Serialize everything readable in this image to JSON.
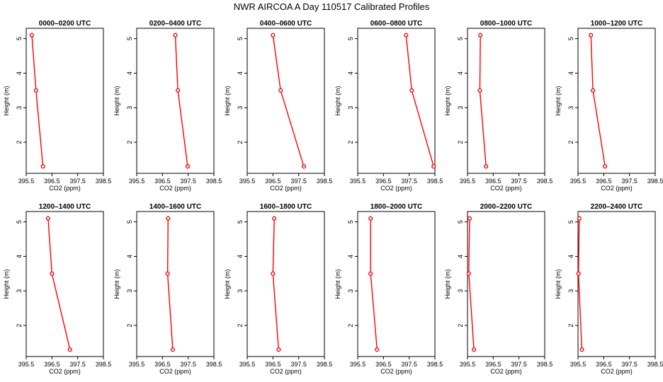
{
  "figure": {
    "title": "NWR AIRCOA A  Day 110517  Calibrated Profiles"
  },
  "style": {
    "series_color": "#ff0000",
    "axis_color": "#000000"
  },
  "chart_data": [
    {
      "type": "line",
      "title": "0000–0200 UTC",
      "xlabel": "CO2 (ppm)",
      "ylabel": "Height (m)",
      "xlim": [
        395.5,
        398.5
      ],
      "ylim": [
        1.1,
        5.3
      ],
      "x_ticks": [
        "395.5",
        "396.5",
        "397.5",
        "398.5"
      ],
      "y_ticks": [
        "2",
        "3",
        "4",
        "5"
      ],
      "series": [
        {
          "x": [
            395.72,
            395.88,
            396.15
          ],
          "y": [
            5.1,
            3.5,
            1.3
          ]
        }
      ]
    },
    {
      "type": "line",
      "title": "0200–0400 UTC",
      "xlabel": "CO2 (ppm)",
      "ylabel": "Height (m)",
      "xlim": [
        395.5,
        398.5
      ],
      "ylim": [
        1.1,
        5.3
      ],
      "x_ticks": [
        "395.5",
        "396.5",
        "397.5",
        "398.5"
      ],
      "y_ticks": [
        "2",
        "3",
        "4",
        "5"
      ],
      "series": [
        {
          "x": [
            397.0,
            397.1,
            397.48
          ],
          "y": [
            5.1,
            3.5,
            1.3
          ]
        }
      ]
    },
    {
      "type": "line",
      "title": "0400–0600 UTC",
      "xlabel": "CO2 (ppm)",
      "ylabel": "Height (m)",
      "xlim": [
        395.5,
        398.5
      ],
      "ylim": [
        1.1,
        5.3
      ],
      "x_ticks": [
        "395.5",
        "396.5",
        "397.5",
        "398.5"
      ],
      "y_ticks": [
        "2",
        "3",
        "4",
        "5"
      ],
      "series": [
        {
          "x": [
            396.5,
            396.8,
            397.7
          ],
          "y": [
            5.1,
            3.5,
            1.3
          ]
        }
      ]
    },
    {
      "type": "line",
      "title": "0600–0800 UTC",
      "xlabel": "CO2 (ppm)",
      "ylabel": "Height (m)",
      "xlim": [
        395.5,
        398.5
      ],
      "ylim": [
        1.1,
        5.3
      ],
      "x_ticks": [
        "395.5",
        "396.5",
        "397.5",
        "398.5"
      ],
      "y_ticks": [
        "2",
        "3",
        "4",
        "5"
      ],
      "series": [
        {
          "x": [
            397.38,
            397.6,
            398.45
          ],
          "y": [
            5.1,
            3.5,
            1.3
          ]
        }
      ]
    },
    {
      "type": "line",
      "title": "0800–1000 UTC",
      "xlabel": "CO2 (ppm)",
      "ylabel": "Height (m)",
      "xlim": [
        395.5,
        398.5
      ],
      "ylim": [
        1.1,
        5.3
      ],
      "x_ticks": [
        "395.5",
        "396.5",
        "397.5",
        "398.5"
      ],
      "y_ticks": [
        "2",
        "3",
        "4",
        "5"
      ],
      "series": [
        {
          "x": [
            396.0,
            395.98,
            396.22
          ],
          "y": [
            5.1,
            3.5,
            1.3
          ]
        }
      ]
    },
    {
      "type": "line",
      "title": "1000–1200 UTC",
      "xlabel": "CO2 (ppm)",
      "ylabel": "Height (m)",
      "xlim": [
        395.5,
        398.5
      ],
      "ylim": [
        1.1,
        5.3
      ],
      "x_ticks": [
        "395.5",
        "396.5",
        "397.5",
        "398.5"
      ],
      "y_ticks": [
        "2",
        "3",
        "4",
        "5"
      ],
      "series": [
        {
          "x": [
            396.0,
            396.08,
            396.55
          ],
          "y": [
            5.1,
            3.5,
            1.3
          ]
        }
      ]
    },
    {
      "type": "line",
      "title": "1200–1400 UTC",
      "xlabel": "CO2 (ppm)",
      "ylabel": "Height (m)",
      "xlim": [
        395.5,
        398.5
      ],
      "ylim": [
        1.1,
        5.3
      ],
      "x_ticks": [
        "395.5",
        "396.5",
        "397.5",
        "398.5"
      ],
      "y_ticks": [
        "2",
        "3",
        "4",
        "5"
      ],
      "series": [
        {
          "x": [
            396.35,
            396.5,
            397.2
          ],
          "y": [
            5.1,
            3.5,
            1.3
          ]
        }
      ]
    },
    {
      "type": "line",
      "title": "1400–1600 UTC",
      "xlabel": "CO2 (ppm)",
      "ylabel": "Height (m)",
      "xlim": [
        395.5,
        398.5
      ],
      "ylim": [
        1.1,
        5.3
      ],
      "x_ticks": [
        "395.5",
        "396.5",
        "397.5",
        "398.5"
      ],
      "y_ticks": [
        "2",
        "3",
        "4",
        "5"
      ],
      "series": [
        {
          "x": [
            396.72,
            396.7,
            396.9
          ],
          "y": [
            5.1,
            3.5,
            1.3
          ]
        }
      ]
    },
    {
      "type": "line",
      "title": "1600–1800 UTC",
      "xlabel": "CO2 (ppm)",
      "ylabel": "Height (m)",
      "xlim": [
        395.5,
        398.5
      ],
      "ylim": [
        1.1,
        5.3
      ],
      "x_ticks": [
        "395.5",
        "396.5",
        "397.5",
        "398.5"
      ],
      "y_ticks": [
        "2",
        "3",
        "4",
        "5"
      ],
      "series": [
        {
          "x": [
            396.55,
            396.5,
            396.72
          ],
          "y": [
            5.1,
            3.5,
            1.3
          ]
        }
      ]
    },
    {
      "type": "line",
      "title": "1800–2000 UTC",
      "xlabel": "CO2 (ppm)",
      "ylabel": "Height (m)",
      "xlim": [
        395.5,
        398.5
      ],
      "ylim": [
        1.1,
        5.3
      ],
      "x_ticks": [
        "395.5",
        "396.5",
        "397.5",
        "398.5"
      ],
      "y_ticks": [
        "2",
        "3",
        "4",
        "5"
      ],
      "series": [
        {
          "x": [
            396.0,
            396.0,
            396.25
          ],
          "y": [
            5.1,
            3.5,
            1.3
          ]
        }
      ]
    },
    {
      "type": "line",
      "title": "2000–2200 UTC",
      "xlabel": "CO2 (ppm)",
      "ylabel": "Height (m)",
      "xlim": [
        395.5,
        398.5
      ],
      "ylim": [
        1.1,
        5.3
      ],
      "x_ticks": [
        "395.5",
        "396.5",
        "397.5",
        "398.5"
      ],
      "y_ticks": [
        "2",
        "3",
        "4",
        "5"
      ],
      "series": [
        {
          "x": [
            395.58,
            395.55,
            395.75
          ],
          "y": [
            5.1,
            3.5,
            1.3
          ]
        }
      ]
    },
    {
      "type": "line",
      "title": "2200–2400 UTC",
      "xlabel": "CO2 (ppm)",
      "ylabel": "Height (m)",
      "xlim": [
        395.5,
        398.5
      ],
      "ylim": [
        1.1,
        5.3
      ],
      "x_ticks": [
        "395.5",
        "396.5",
        "397.5",
        "398.5"
      ],
      "y_ticks": [
        "2",
        "3",
        "4",
        "5"
      ],
      "series": [
        {
          "x": [
            395.55,
            395.52,
            395.65
          ],
          "y": [
            5.1,
            3.5,
            1.3
          ]
        }
      ]
    }
  ]
}
